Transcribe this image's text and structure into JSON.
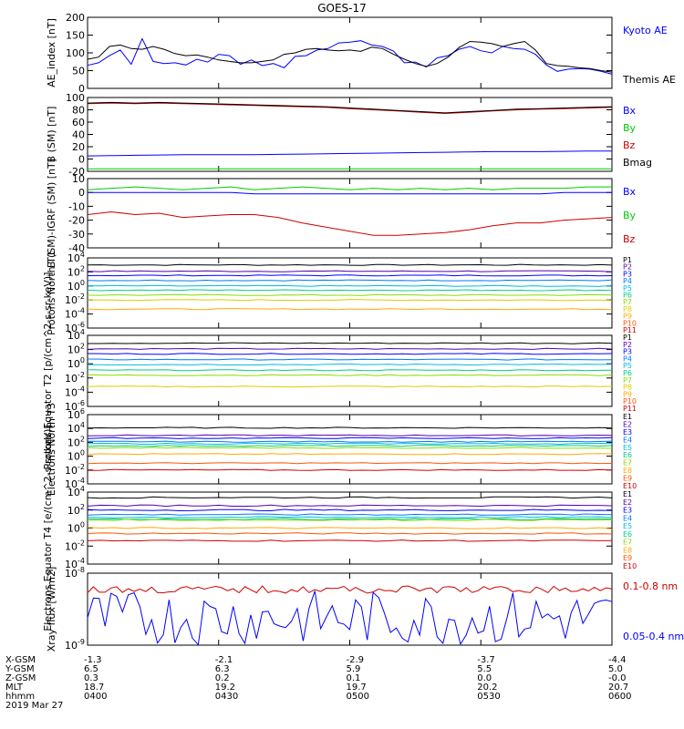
{
  "title": "GOES-17",
  "chart_data": [
    {
      "id": "ae",
      "type": "line",
      "ylabel": "AE_index [nT]",
      "ylim": [
        0,
        200
      ],
      "ticks": [
        "200",
        "150",
        "100",
        "50",
        "0"
      ],
      "series": [
        {
          "name": "Kyoto AE",
          "color": "#0000ff",
          "values": [
            65,
            72,
            92,
            108,
            68,
            140,
            76,
            70,
            72,
            66,
            82,
            74,
            96,
            92,
            68,
            80,
            64,
            70,
            58,
            90,
            92,
            108,
            112,
            128,
            130,
            134,
            122,
            118,
            105,
            72,
            74,
            60,
            86,
            92,
            110,
            118,
            106,
            100,
            118,
            112,
            110,
            96,
            66,
            48,
            54,
            56,
            54,
            48,
            40
          ]
        },
        {
          "name": "Themis AE",
          "color": "#000000",
          "values": [
            82,
            88,
            118,
            122,
            112,
            110,
            118,
            110,
            98,
            92,
            94,
            88,
            80,
            76,
            72,
            72,
            76,
            80,
            96,
            100,
            110,
            112,
            108,
            106,
            108,
            104,
            116,
            112,
            96,
            82,
            70,
            62,
            70,
            88,
            115,
            132,
            130,
            126,
            118,
            126,
            132,
            108,
            70,
            64,
            62,
            58,
            56,
            50,
            46
          ]
        }
      ]
    },
    {
      "id": "b",
      "type": "line",
      "ylabel": "B (SM) [nT]",
      "ylim": [
        -20,
        100
      ],
      "ticks": [
        "100",
        "80",
        "60",
        "40",
        "20",
        "0",
        "-20"
      ],
      "series": [
        {
          "name": "Bx",
          "color": "#0000ff",
          "values": [
            5,
            5.5,
            6,
            6.5,
            7,
            7,
            7,
            7,
            7.5,
            8,
            8.5,
            9,
            9.5,
            10,
            10.5,
            11,
            11.5,
            12,
            12,
            12,
            12.5,
            13,
            13
          ]
        },
        {
          "name": "By",
          "color": "#00cc00",
          "values": [
            -16,
            -16,
            -16,
            -16,
            -16,
            -16,
            -16,
            -16,
            -16,
            -16,
            -16,
            -16,
            -16,
            -16,
            -16,
            -16,
            -16,
            -16,
            -16,
            -16,
            -16,
            -16,
            -16
          ]
        },
        {
          "name": "Bz",
          "color": "#cc0000",
          "values": [
            90,
            91,
            90,
            91,
            90,
            89,
            88,
            87,
            86,
            85,
            84,
            82,
            80,
            78,
            76,
            74,
            76,
            78,
            80,
            81,
            82,
            83,
            84
          ]
        },
        {
          "name": "Bmag",
          "color": "#000000",
          "values": [
            91,
            92,
            91,
            92,
            91,
            90,
            89,
            88,
            87,
            86,
            85,
            83,
            81,
            79,
            77,
            75,
            77,
            79,
            81,
            82,
            83,
            84,
            85
          ]
        }
      ]
    },
    {
      "id": "db",
      "type": "line",
      "ylabel": "B (SM)-IGRF (SM) [nT]",
      "ylim": [
        -40,
        10
      ],
      "ticks": [
        "10",
        "0",
        "-10",
        "-20",
        "-30",
        "-40"
      ],
      "series": [
        {
          "name": "Bx",
          "color": "#0000ff",
          "values": [
            0,
            0,
            0,
            0,
            0,
            0,
            0,
            -1,
            -1,
            -1,
            -1,
            -1,
            -1,
            -1,
            -1,
            -1,
            -1,
            -1,
            -1,
            -1,
            0,
            0,
            0
          ]
        },
        {
          "name": "By",
          "color": "#00cc00",
          "values": [
            2,
            3,
            4,
            3,
            2,
            3,
            4,
            2,
            3,
            4,
            3,
            2,
            3,
            2,
            3,
            2,
            3,
            2,
            3,
            3,
            3,
            4,
            4
          ]
        },
        {
          "name": "Bz",
          "color": "#cc0000",
          "values": [
            -16,
            -14,
            -16,
            -15,
            -18,
            -17,
            -16,
            -16,
            -18,
            -22,
            -25,
            -28,
            -31,
            -31,
            -30,
            -29,
            -27,
            -24,
            -22,
            -22,
            -20,
            -19,
            -18
          ]
        }
      ]
    },
    {
      "id": "pn",
      "type": "line",
      "log": true,
      "ylabel": "Protons North T1",
      "ylim": [
        -6,
        4
      ],
      "ticks": [
        "10^4",
        "10^2",
        "10^0",
        "10^-2",
        "10^-4",
        "10^-6"
      ],
      "series": [
        {
          "name": "P1",
          "color": "#000000",
          "value": 3.0
        },
        {
          "name": "P2",
          "color": "#5500aa",
          "value": 2.1
        },
        {
          "name": "P3",
          "color": "#0000ff",
          "value": 1.5
        },
        {
          "name": "P4",
          "color": "#0077ff",
          "value": 0.8
        },
        {
          "name": "P5",
          "color": "#00bbdd",
          "value": 0.0
        },
        {
          "name": "P6",
          "color": "#00cc88",
          "value": -0.6
        },
        {
          "name": "P7",
          "color": "#88dd00",
          "value": -1.3
        },
        {
          "name": "P8",
          "color": "#ddcc00",
          "value": -2.0
        },
        {
          "name": "P9",
          "color": "#ffaa00",
          "value": -3.3
        },
        {
          "name": "P10",
          "color": "#ff5500",
          "value": null
        },
        {
          "name": "P11",
          "color": "#cc0000",
          "value": null
        }
      ]
    },
    {
      "id": "pe",
      "type": "line",
      "log": true,
      "ylabel": "Protons Equator T2 [p/(cm^2-s-sr-keV)]",
      "ylim": [
        -6,
        4
      ],
      "ticks": [
        "10^4",
        "10^2",
        "10^0",
        "10^-2",
        "10^-4",
        "10^-6"
      ],
      "series": [
        {
          "name": "P1",
          "color": "#000000",
          "value": 2.9
        },
        {
          "name": "P2",
          "color": "#5500aa",
          "value": 2.1
        },
        {
          "name": "P3",
          "color": "#0000ff",
          "value": 1.4
        },
        {
          "name": "P4",
          "color": "#0077ff",
          "value": 0.6
        },
        {
          "name": "P5",
          "color": "#00bbdd",
          "value": -0.1
        },
        {
          "name": "P6",
          "color": "#00cc88",
          "value": -0.9
        },
        {
          "name": "P7",
          "color": "#88dd00",
          "value": -1.6
        },
        {
          "name": "P8",
          "color": "#ddcc00",
          "value": -3.2
        },
        {
          "name": "P9",
          "color": "#ffaa00",
          "value": null
        },
        {
          "name": "P10",
          "color": "#ff5500",
          "value": null
        },
        {
          "name": "P11",
          "color": "#cc0000",
          "value": null
        }
      ]
    },
    {
      "id": "en",
      "type": "line",
      "log": true,
      "ylabel": "Electrons North T3",
      "ylim": [
        -4,
        6
      ],
      "ticks": [
        "10^6",
        "10^4",
        "10^2",
        "10^0",
        "10^-2",
        "10^-4"
      ],
      "series": [
        {
          "name": "E1",
          "color": "#000000",
          "value": 4.1
        },
        {
          "name": "E2",
          "color": "#5500aa",
          "value": 3.0
        },
        {
          "name": "E3",
          "color": "#0000ff",
          "value": 2.6
        },
        {
          "name": "E4",
          "color": "#0077ff",
          "value": 2.1
        },
        {
          "name": "E5",
          "color": "#00bbdd",
          "value": 1.8
        },
        {
          "name": "E6",
          "color": "#00cc88",
          "value": 1.5
        },
        {
          "name": "E7",
          "color": "#88dd00",
          "value": 1.2
        },
        {
          "name": "E8",
          "color": "#ffaa00",
          "value": 0.3
        },
        {
          "name": "E9",
          "color": "#ff5500",
          "value": -1.0
        },
        {
          "name": "E10",
          "color": "#cc0000",
          "value": -2.0
        }
      ]
    },
    {
      "id": "ee",
      "type": "line",
      "log": true,
      "ylabel": "Electrons Equator T4 [e/(cm^2-s-sr-keV)]",
      "ylim": [
        -4,
        4
      ],
      "ticks": [
        "10^4",
        "10^2",
        "10^0",
        "10^-2",
        "10^-4"
      ],
      "series": [
        {
          "name": "E1",
          "color": "#000000",
          "value": 3.4
        },
        {
          "name": "E2",
          "color": "#5500aa",
          "value": 2.5
        },
        {
          "name": "E3",
          "color": "#0000ff",
          "value": 2.0
        },
        {
          "name": "E4",
          "color": "#0077ff",
          "value": 1.5
        },
        {
          "name": "E5",
          "color": "#00bbdd",
          "value": 1.2
        },
        {
          "name": "E6",
          "color": "#00cc88",
          "value": 1.0
        },
        {
          "name": "E7",
          "color": "#88dd00",
          "value": 0.9
        },
        {
          "name": "E8",
          "color": "#ffaa00",
          "value": 0.0
        },
        {
          "name": "E9",
          "color": "#ff5500",
          "value": -0.6
        },
        {
          "name": "E10",
          "color": "#cc0000",
          "value": -1.4
        }
      ]
    },
    {
      "id": "xray",
      "type": "line",
      "ylabel": "Xray flux [W/m2]",
      "ticks": [
        "10^-8",
        "10^-9"
      ],
      "series": [
        {
          "name": "0.1-0.8 nm",
          "color": "#cc0000"
        },
        {
          "name": "0.05-0.4 nm",
          "color": "#0000ff"
        }
      ]
    }
  ],
  "xaxis": {
    "rows": [
      {
        "label": "X-GSM",
        "values": [
          "-1.3",
          "-2.1",
          "-2.9",
          "-3.7",
          "-4.4"
        ]
      },
      {
        "label": "Y-GSM",
        "values": [
          "6.5",
          "6.3",
          "5.9",
          "5.5",
          "5.0"
        ]
      },
      {
        "label": "Z-GSM",
        "values": [
          "0.3",
          "0.2",
          "0.1",
          "0.0",
          "-0.0"
        ]
      },
      {
        "label": "MLT",
        "values": [
          "18.7",
          "19.2",
          "19.7",
          "20.2",
          "20.7"
        ]
      },
      {
        "label": "hhmm",
        "values": [
          "0400",
          "0430",
          "0500",
          "0530",
          "0600"
        ]
      }
    ],
    "date": "2019 Mar 27"
  }
}
